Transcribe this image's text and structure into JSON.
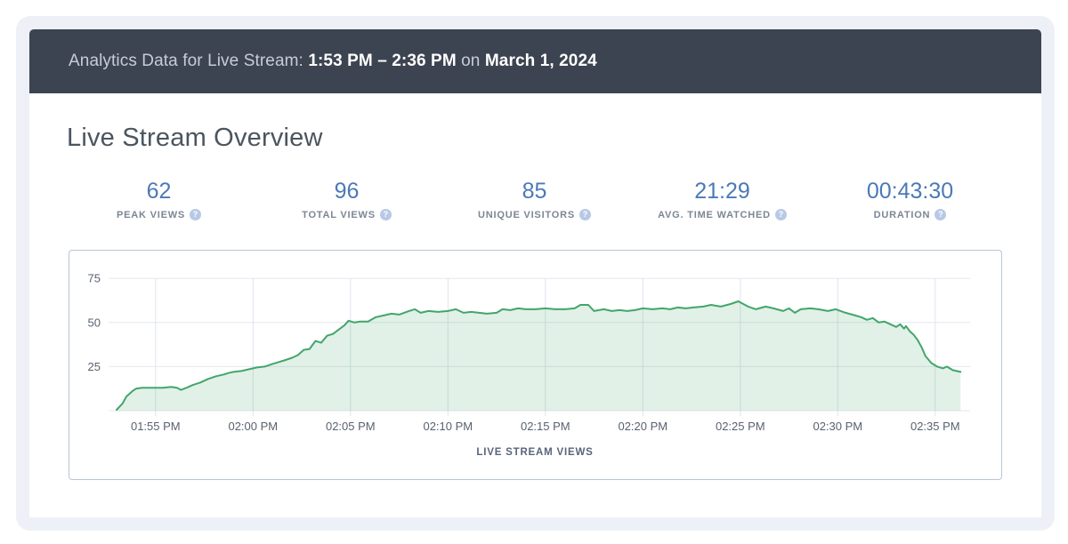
{
  "banner": {
    "prefix": "Analytics Data for Live Stream: ",
    "time_range": "1:53 PM – 2:36 PM",
    "connector": " on ",
    "date": "March 1, 2024"
  },
  "overview": {
    "title": "Live Stream Overview"
  },
  "stats": {
    "items": [
      {
        "value": "62",
        "label": "PEAK VIEWS"
      },
      {
        "value": "96",
        "label": "TOTAL VIEWS"
      },
      {
        "value": "85",
        "label": "UNIQUE VISITORS"
      },
      {
        "value": "21:29",
        "label": "AVG. TIME WATCHED"
      },
      {
        "value": "00:43:30",
        "label": "DURATION"
      }
    ],
    "help_icon_glyph": "?"
  },
  "chart_data": {
    "type": "area",
    "title": "LIVE STREAM VIEWS",
    "series_name": "Live Stream Views",
    "x_axis_unit": "minutes after stream start (1:53 PM)",
    "x_range_minutes": [
      0,
      43.3
    ],
    "x_tick_labels": [
      "01:55 PM",
      "02:00 PM",
      "02:05 PM",
      "02:10 PM",
      "02:15 PM",
      "02:20 PM",
      "02:25 PM",
      "02:30 PM",
      "02:35 PM"
    ],
    "x_tick_minutes": [
      2,
      7,
      12,
      17,
      22,
      27,
      32,
      37,
      42
    ],
    "y_ticks": [
      25,
      50,
      75
    ],
    "ylim": [
      0,
      78
    ],
    "grid": true,
    "legend": "none",
    "line_color": "#43a56c",
    "fill_color": "#43a56c",
    "fill_opacity": 0.16,
    "grid_color_h": "#e4e7ee",
    "grid_color_v": "#dde3ee",
    "tick_label_color": "#58626f",
    "axis_title_color": "#59647a",
    "points": [
      [
        0,
        0.5
      ],
      [
        0.3,
        4
      ],
      [
        0.5,
        8
      ],
      [
        0.8,
        11
      ],
      [
        1,
        12.5
      ],
      [
        1.3,
        13
      ],
      [
        1.7,
        13
      ],
      [
        2,
        13
      ],
      [
        2.4,
        13
      ],
      [
        2.8,
        13.5
      ],
      [
        3.1,
        13
      ],
      [
        3.3,
        11.8
      ],
      [
        3.6,
        13
      ],
      [
        3.9,
        14.5
      ],
      [
        4.3,
        16
      ],
      [
        4.7,
        18
      ],
      [
        5.1,
        19.5
      ],
      [
        5.5,
        20.5
      ],
      [
        5.8,
        21.5
      ],
      [
        6,
        22
      ],
      [
        6.4,
        22.5
      ],
      [
        6.8,
        23.5
      ],
      [
        7.2,
        24.5
      ],
      [
        7.6,
        25
      ],
      [
        8,
        26.5
      ],
      [
        8.3,
        27.5
      ],
      [
        8.6,
        28.5
      ],
      [
        9,
        30
      ],
      [
        9.3,
        31.5
      ],
      [
        9.6,
        34.5
      ],
      [
        9.9,
        35
      ],
      [
        10.2,
        39.5
      ],
      [
        10.5,
        38.5
      ],
      [
        10.8,
        42.5
      ],
      [
        11.1,
        43.5
      ],
      [
        11.4,
        46
      ],
      [
        11.7,
        48.5
      ],
      [
        11.9,
        51
      ],
      [
        12.2,
        50
      ],
      [
        12.5,
        50.5
      ],
      [
        12.9,
        50.5
      ],
      [
        13.3,
        53
      ],
      [
        13.7,
        54
      ],
      [
        14.1,
        55
      ],
      [
        14.5,
        54.5
      ],
      [
        15,
        56.5
      ],
      [
        15.3,
        57.5
      ],
      [
        15.6,
        55.5
      ],
      [
        16,
        56.5
      ],
      [
        16.5,
        56
      ],
      [
        17,
        56.5
      ],
      [
        17.4,
        57.5
      ],
      [
        17.8,
        55.5
      ],
      [
        18.2,
        56
      ],
      [
        18.6,
        55.5
      ],
      [
        19,
        55
      ],
      [
        19.5,
        55.5
      ],
      [
        19.8,
        57.5
      ],
      [
        20.2,
        57
      ],
      [
        20.6,
        58
      ],
      [
        21,
        57.5
      ],
      [
        21.5,
        57.5
      ],
      [
        22,
        58
      ],
      [
        22.5,
        57.5
      ],
      [
        23,
        57.5
      ],
      [
        23.5,
        58
      ],
      [
        23.8,
        60
      ],
      [
        24.2,
        60
      ],
      [
        24.5,
        56.5
      ],
      [
        25,
        57.5
      ],
      [
        25.4,
        56.5
      ],
      [
        25.8,
        57
      ],
      [
        26.2,
        56.5
      ],
      [
        26.6,
        57
      ],
      [
        27,
        58
      ],
      [
        27.5,
        57.5
      ],
      [
        28,
        58
      ],
      [
        28.4,
        57.5
      ],
      [
        28.8,
        58.5
      ],
      [
        29.2,
        58
      ],
      [
        29.6,
        58.5
      ],
      [
        30.1,
        59
      ],
      [
        30.5,
        60
      ],
      [
        31,
        59
      ],
      [
        31.5,
        60.5
      ],
      [
        31.9,
        62
      ],
      [
        32.4,
        59
      ],
      [
        32.8,
        57.5
      ],
      [
        33.3,
        59
      ],
      [
        33.7,
        58
      ],
      [
        34.2,
        56.5
      ],
      [
        34.5,
        58
      ],
      [
        34.8,
        55.5
      ],
      [
        35.1,
        57.5
      ],
      [
        35.6,
        58
      ],
      [
        36,
        57.5
      ],
      [
        36.5,
        56.5
      ],
      [
        36.9,
        57.5
      ],
      [
        37.4,
        55.5
      ],
      [
        37.9,
        54
      ],
      [
        38.2,
        53
      ],
      [
        38.5,
        51.5
      ],
      [
        38.8,
        52.5
      ],
      [
        39.1,
        50
      ],
      [
        39.4,
        50.5
      ],
      [
        39.7,
        49
      ],
      [
        40,
        47.5
      ],
      [
        40.2,
        49
      ],
      [
        40.4,
        46.5
      ],
      [
        40.5,
        48
      ],
      [
        40.7,
        45
      ],
      [
        40.9,
        43
      ],
      [
        41.1,
        40
      ],
      [
        41.3,
        36
      ],
      [
        41.5,
        31
      ],
      [
        41.8,
        27
      ],
      [
        42.1,
        25
      ],
      [
        42.4,
        24
      ],
      [
        42.6,
        25
      ],
      [
        42.9,
        23
      ],
      [
        43.1,
        22.5
      ],
      [
        43.3,
        22
      ]
    ]
  },
  "colors": {
    "banner_bg": "#3d4451",
    "card_bg": "#edf1f7",
    "stat_value": "#4b79b7",
    "chart_border": "#b8c5da"
  }
}
